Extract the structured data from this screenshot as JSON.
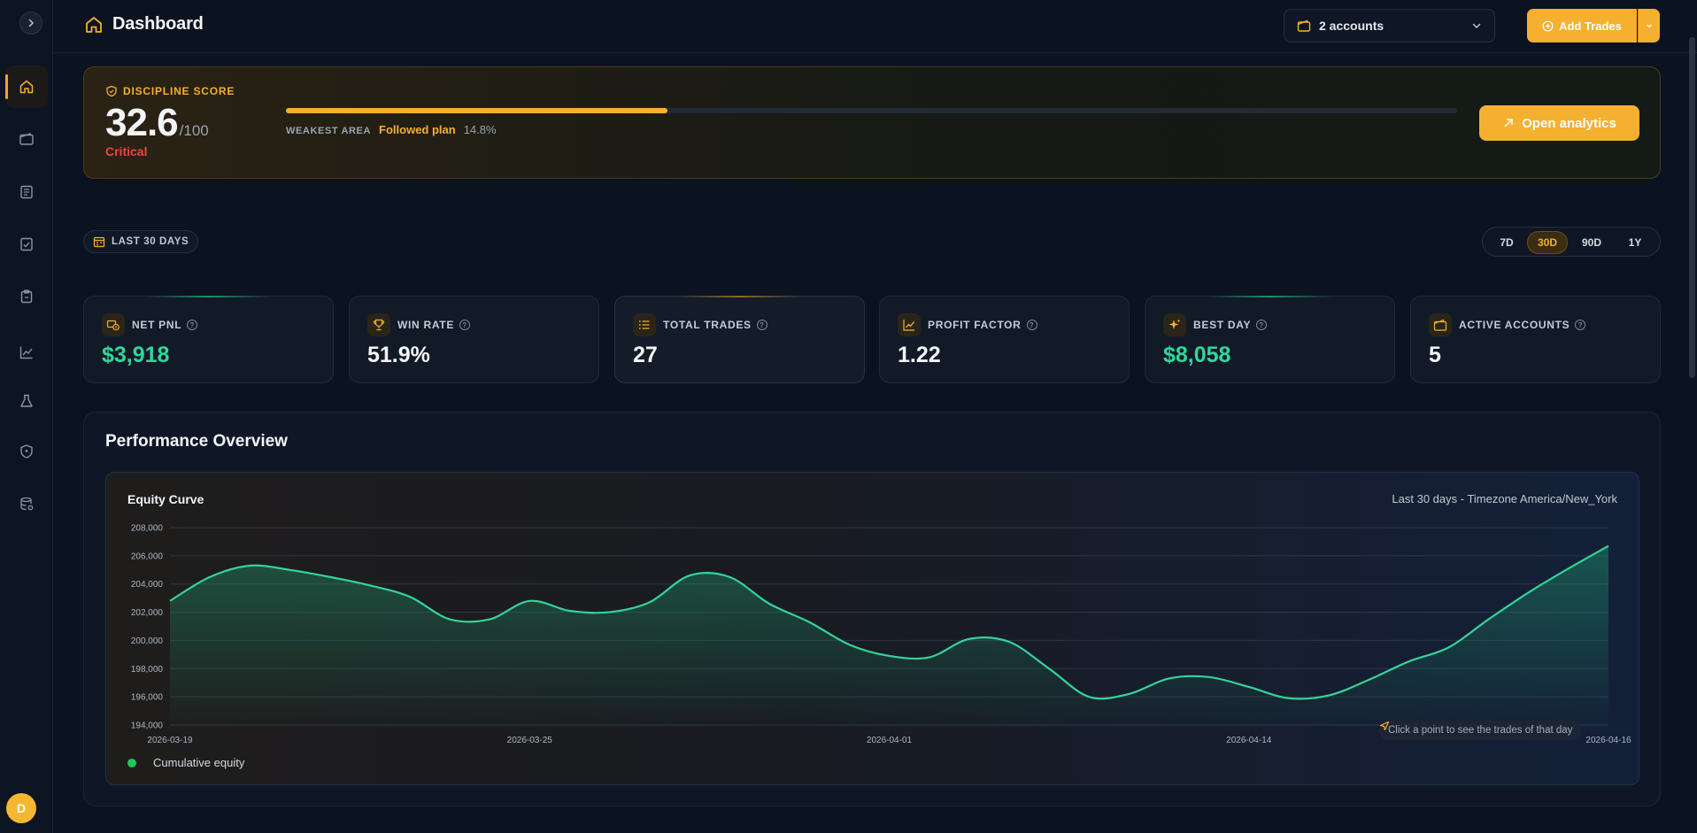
{
  "header": {
    "title": "Dashboard",
    "accounts_label": "2 accounts",
    "add_trades_label": "Add Trades"
  },
  "discipline": {
    "label": "DISCIPLINE SCORE",
    "score": "32.6",
    "max": "/100",
    "status": "Critical",
    "progress": 0.326,
    "weakest_label": "WEAKEST AREA",
    "weakest_value": "Followed plan",
    "weakest_pct": "14.8%",
    "open_button": "Open analytics"
  },
  "range": {
    "chip_label": "LAST 30 DAYS",
    "tabs": [
      {
        "label": "7D",
        "active": false
      },
      {
        "label": "30D",
        "active": true
      },
      {
        "label": "90D",
        "active": false
      },
      {
        "label": "1Y",
        "active": false
      }
    ]
  },
  "stats": [
    {
      "label": "NET PNL",
      "value": "$3,918",
      "icon": "money-icon"
    },
    {
      "label": "WIN RATE",
      "value": "51.9%",
      "icon": "trophy-icon"
    },
    {
      "label": "TOTAL TRADES",
      "value": "27",
      "icon": "list-icon"
    },
    {
      "label": "PROFIT FACTOR",
      "value": "1.22",
      "icon": "trend-icon"
    },
    {
      "label": "BEST DAY",
      "value": "$8,058",
      "icon": "sparkle-icon"
    },
    {
      "label": "ACTIVE ACCOUNTS",
      "value": "5",
      "icon": "wallet-icon"
    }
  ],
  "performance": {
    "title": "Performance Overview",
    "chart_title": "Equity Curve",
    "chart_subtitle": "Last 30 days - Timezone America/New_York",
    "legend": "Cumulative equity",
    "hint": "Click a point to see the trades of that day"
  },
  "sidebar": {
    "avatar_initial": "D",
    "items": [
      "home-icon",
      "wallet-icon",
      "journal-icon",
      "checklist-icon",
      "clipboard-icon",
      "chart-icon",
      "flask-icon",
      "shield-icon",
      "database-icon"
    ]
  },
  "colors": {
    "accent": "#f5b02f",
    "positive": "#2fd79a",
    "critical": "#ef4444",
    "line": "#34d399"
  },
  "chart_data": {
    "type": "area",
    "title": "Equity Curve",
    "subtitle": "Last 30 days - Timezone America/New_York",
    "ylim": [
      194000,
      208000
    ],
    "yticks": [
      "194,000",
      "196,000",
      "198,000",
      "200,000",
      "202,000",
      "204,000",
      "206,000",
      "208,000"
    ],
    "xticks": [
      "2026-03-19",
      "2026-03-25",
      "2026-04-01",
      "2026-04-14",
      "2026-04-16"
    ],
    "grid": true,
    "legend_placement": "bottom-left",
    "series": [
      {
        "name": "Cumulative equity",
        "values": [
          202800,
          204500,
          205300,
          205000,
          204500,
          203900,
          203100,
          201500,
          201500,
          202800,
          202100,
          202000,
          202700,
          204600,
          204500,
          202600,
          201300,
          199700,
          198900,
          198800,
          200100,
          199900,
          198000,
          196000,
          196200,
          197300,
          197400,
          196700,
          195900,
          196100,
          197200,
          198500,
          199500,
          201500,
          203400,
          205100,
          206700
        ]
      }
    ]
  }
}
